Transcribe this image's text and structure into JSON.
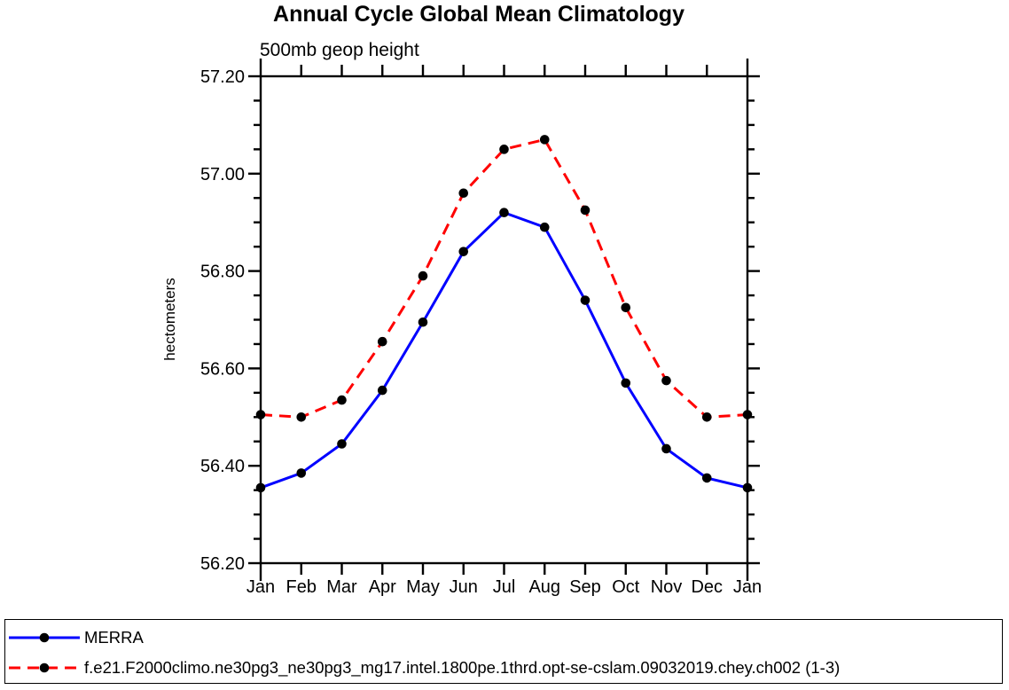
{
  "chart_data": {
    "type": "line",
    "title": "Annual Cycle Global Mean Climatology",
    "subtitle": "500mb geop height",
    "ylabel": "hectometers",
    "xlabel": "",
    "categories": [
      "Jan",
      "Feb",
      "Mar",
      "Apr",
      "May",
      "Jun",
      "Jul",
      "Aug",
      "Sep",
      "Oct",
      "Nov",
      "Dec",
      "Jan"
    ],
    "ylim": [
      56.2,
      57.2
    ],
    "ytick_major_interval": 0.2,
    "ytick_minor_interval": 0.05,
    "grid": false,
    "legend_position": "bottom-full-width-box",
    "axis_color": "#000000",
    "series": [
      {
        "name": "MERRA",
        "color": "#0000ff",
        "line_style": "solid",
        "marker": "filled-circle",
        "marker_color": "#000000",
        "values": [
          56.355,
          56.385,
          56.445,
          56.555,
          56.695,
          56.84,
          56.92,
          56.89,
          56.74,
          56.57,
          56.435,
          56.375,
          56.355
        ]
      },
      {
        "name": "f.e21.F2000climo.ne30pg3_ne30pg3_mg17.intel.1800pe.1thrd.opt-se-cslam.09032019.chey.ch002 (1-3)",
        "color": "#ff0000",
        "line_style": "dashed",
        "marker": "filled-circle",
        "marker_color": "#000000",
        "values": [
          56.505,
          56.5,
          56.535,
          56.655,
          56.79,
          56.96,
          57.05,
          57.07,
          56.925,
          56.725,
          56.575,
          56.5,
          56.505
        ]
      }
    ]
  }
}
